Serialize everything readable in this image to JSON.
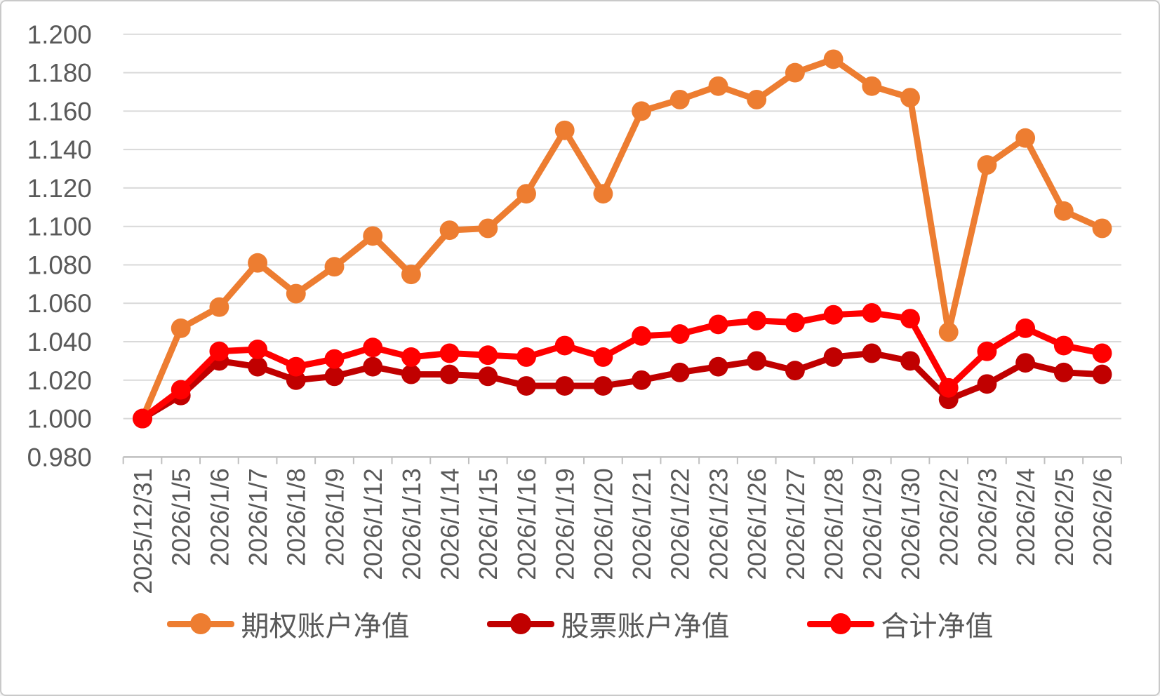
{
  "chart_data": {
    "type": "line",
    "title": "",
    "categories": [
      "2025/12/31",
      "2026/1/5",
      "2026/1/6",
      "2026/1/7",
      "2026/1/8",
      "2026/1/9",
      "2026/1/12",
      "2026/1/13",
      "2026/1/14",
      "2026/1/15",
      "2026/1/16",
      "2026/1/19",
      "2026/1/20",
      "2026/1/21",
      "2026/1/22",
      "2026/1/23",
      "2026/1/26",
      "2026/1/27",
      "2026/1/28",
      "2026/1/29",
      "2026/1/30",
      "2026/2/2",
      "2026/2/3",
      "2026/2/4",
      "2026/2/5",
      "2026/2/6"
    ],
    "series": [
      {
        "name": "期权账户净值",
        "color": "#ED7D31",
        "values": [
          1.0,
          1.047,
          1.058,
          1.081,
          1.065,
          1.079,
          1.095,
          1.075,
          1.098,
          1.099,
          1.117,
          1.15,
          1.117,
          1.16,
          1.166,
          1.173,
          1.166,
          1.18,
          1.187,
          1.173,
          1.167,
          1.045,
          1.132,
          1.146,
          1.108,
          1.099
        ]
      },
      {
        "name": "股票账户净值",
        "color": "#C00000",
        "values": [
          1.0,
          1.012,
          1.03,
          1.027,
          1.02,
          1.022,
          1.027,
          1.023,
          1.023,
          1.022,
          1.017,
          1.017,
          1.017,
          1.02,
          1.024,
          1.027,
          1.03,
          1.025,
          1.032,
          1.034,
          1.03,
          1.01,
          1.018,
          1.029,
          1.024,
          1.023
        ]
      },
      {
        "name": "合计净值",
        "color": "#FF0000",
        "values": [
          1.0,
          1.015,
          1.035,
          1.036,
          1.027,
          1.031,
          1.037,
          1.032,
          1.034,
          1.033,
          1.032,
          1.038,
          1.032,
          1.043,
          1.044,
          1.049,
          1.051,
          1.05,
          1.054,
          1.055,
          1.052,
          1.016,
          1.035,
          1.047,
          1.038,
          1.034
        ]
      }
    ],
    "y_axis": {
      "min": 0.98,
      "max": 1.2,
      "step": 0.02,
      "tick_labels": [
        "0.980",
        "1.000",
        "1.020",
        "1.040",
        "1.060",
        "1.080",
        "1.100",
        "1.120",
        "1.140",
        "1.160",
        "1.180",
        "1.200"
      ]
    },
    "x_axis": {
      "label_rotation_degrees": 90
    },
    "legend_position": "bottom",
    "grid": "horizontal",
    "ylim": [
      0.98,
      1.2
    ],
    "colors": {
      "gridline": "#D9D9D9",
      "axis": "#BFBFBF",
      "text": "#595959",
      "background": "#FFFFFF",
      "border": "#C9C9C9"
    }
  }
}
